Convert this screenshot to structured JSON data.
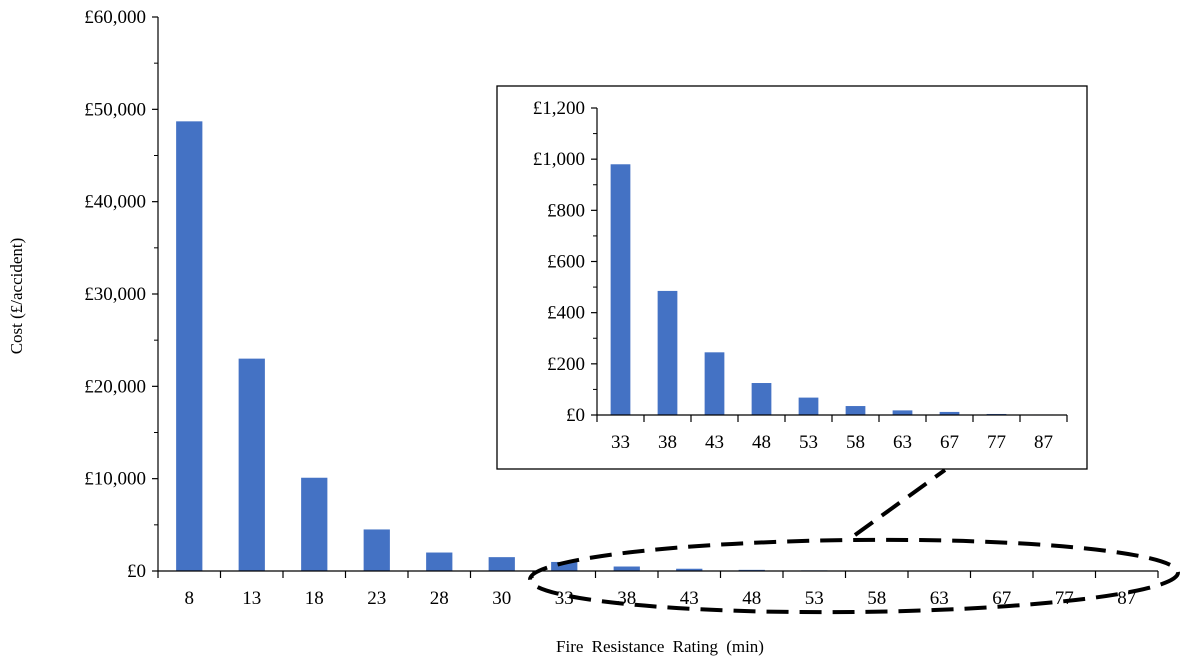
{
  "chart_data": [
    {
      "type": "bar",
      "categories": [
        "8",
        "13",
        "18",
        "23",
        "28",
        "30",
        "33",
        "38",
        "43",
        "48",
        "53",
        "58",
        "63",
        "67",
        "77",
        "87"
      ],
      "values": [
        48700,
        23000,
        10100,
        4500,
        2000,
        1500,
        980,
        485,
        245,
        125,
        68,
        35,
        18,
        12,
        4,
        2
      ],
      "title": "",
      "xlabel": "Fire Resistance Rating (min)",
      "ylabel": "Cost (£/accident)",
      "ylim": [
        0,
        60000
      ],
      "yticks": [
        "£0",
        "£10,000",
        "£20,000",
        "£30,000",
        "£40,000",
        "£50,000",
        "£60,000"
      ],
      "bar_color": "#4472c4",
      "grid": false
    },
    {
      "type": "bar",
      "inset": true,
      "categories": [
        "33",
        "38",
        "43",
        "48",
        "53",
        "58",
        "63",
        "67",
        "77",
        "87"
      ],
      "values": [
        980,
        485,
        245,
        125,
        68,
        35,
        18,
        12,
        4,
        2
      ],
      "title": "",
      "xlabel": "",
      "ylabel": "",
      "ylim": [
        0,
        1200
      ],
      "yticks": [
        "£0",
        "£200",
        "£400",
        "£600",
        "£800",
        "£1,000",
        "£1,200"
      ],
      "bar_color": "#4472c4",
      "grid": false
    }
  ]
}
